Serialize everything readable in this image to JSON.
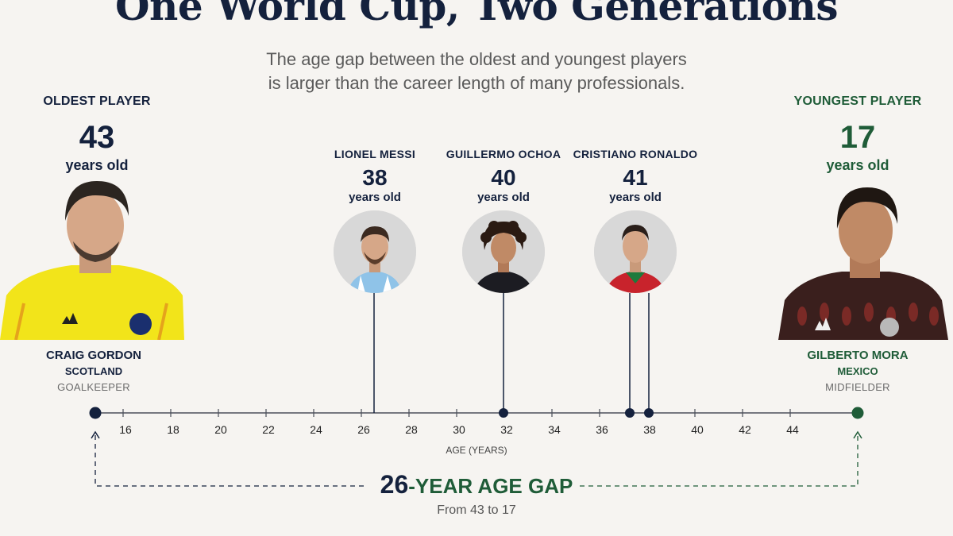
{
  "title": "One World Cup, Two Generations",
  "subtitle": {
    "line1": "The age gap between the oldest and youngest players",
    "line2": "is larger than the career length of many professionals."
  },
  "oldest": {
    "header": "OLDEST PLAYER",
    "age": "43",
    "years_label": "years old",
    "name": "CRAIG GORDON",
    "country": "SCOTLAND",
    "position": "GOALKEEPER",
    "kit_color": "#f2e41a"
  },
  "youngest": {
    "header": "YOUNGEST PLAYER",
    "age": "17",
    "years_label": "years old",
    "name": "GILBERTO MORA",
    "country": "MEXICO",
    "position": "MIDFIELDER",
    "kit_color": "#3a1f1d"
  },
  "featured": [
    {
      "name": "LIONEL MESSI",
      "age": "38",
      "years_label": "years old",
      "kit_color": "#8fc3e8"
    },
    {
      "name": "GUILLERMO OCHOA",
      "age": "40",
      "years_label": "years old",
      "kit_color": "#1c1c22"
    },
    {
      "name": "CRISTIANO RONALDO",
      "age": "41",
      "years_label": "years old",
      "kit_color": "#c8232c"
    }
  ],
  "axis": {
    "label": "AGE (YEARS)",
    "ticks": [
      "16",
      "18",
      "20",
      "22",
      "24",
      "26",
      "28",
      "30",
      "32",
      "34",
      "36",
      "38",
      "40",
      "42",
      "44"
    ]
  },
  "gap": {
    "number": "26",
    "dash": "-",
    "text": "YEAR AGE GAP",
    "sub": "From 43 to 17"
  },
  "colors": {
    "navy": "#14213d",
    "green": "#1f5c38",
    "background": "#f6f4f1"
  }
}
